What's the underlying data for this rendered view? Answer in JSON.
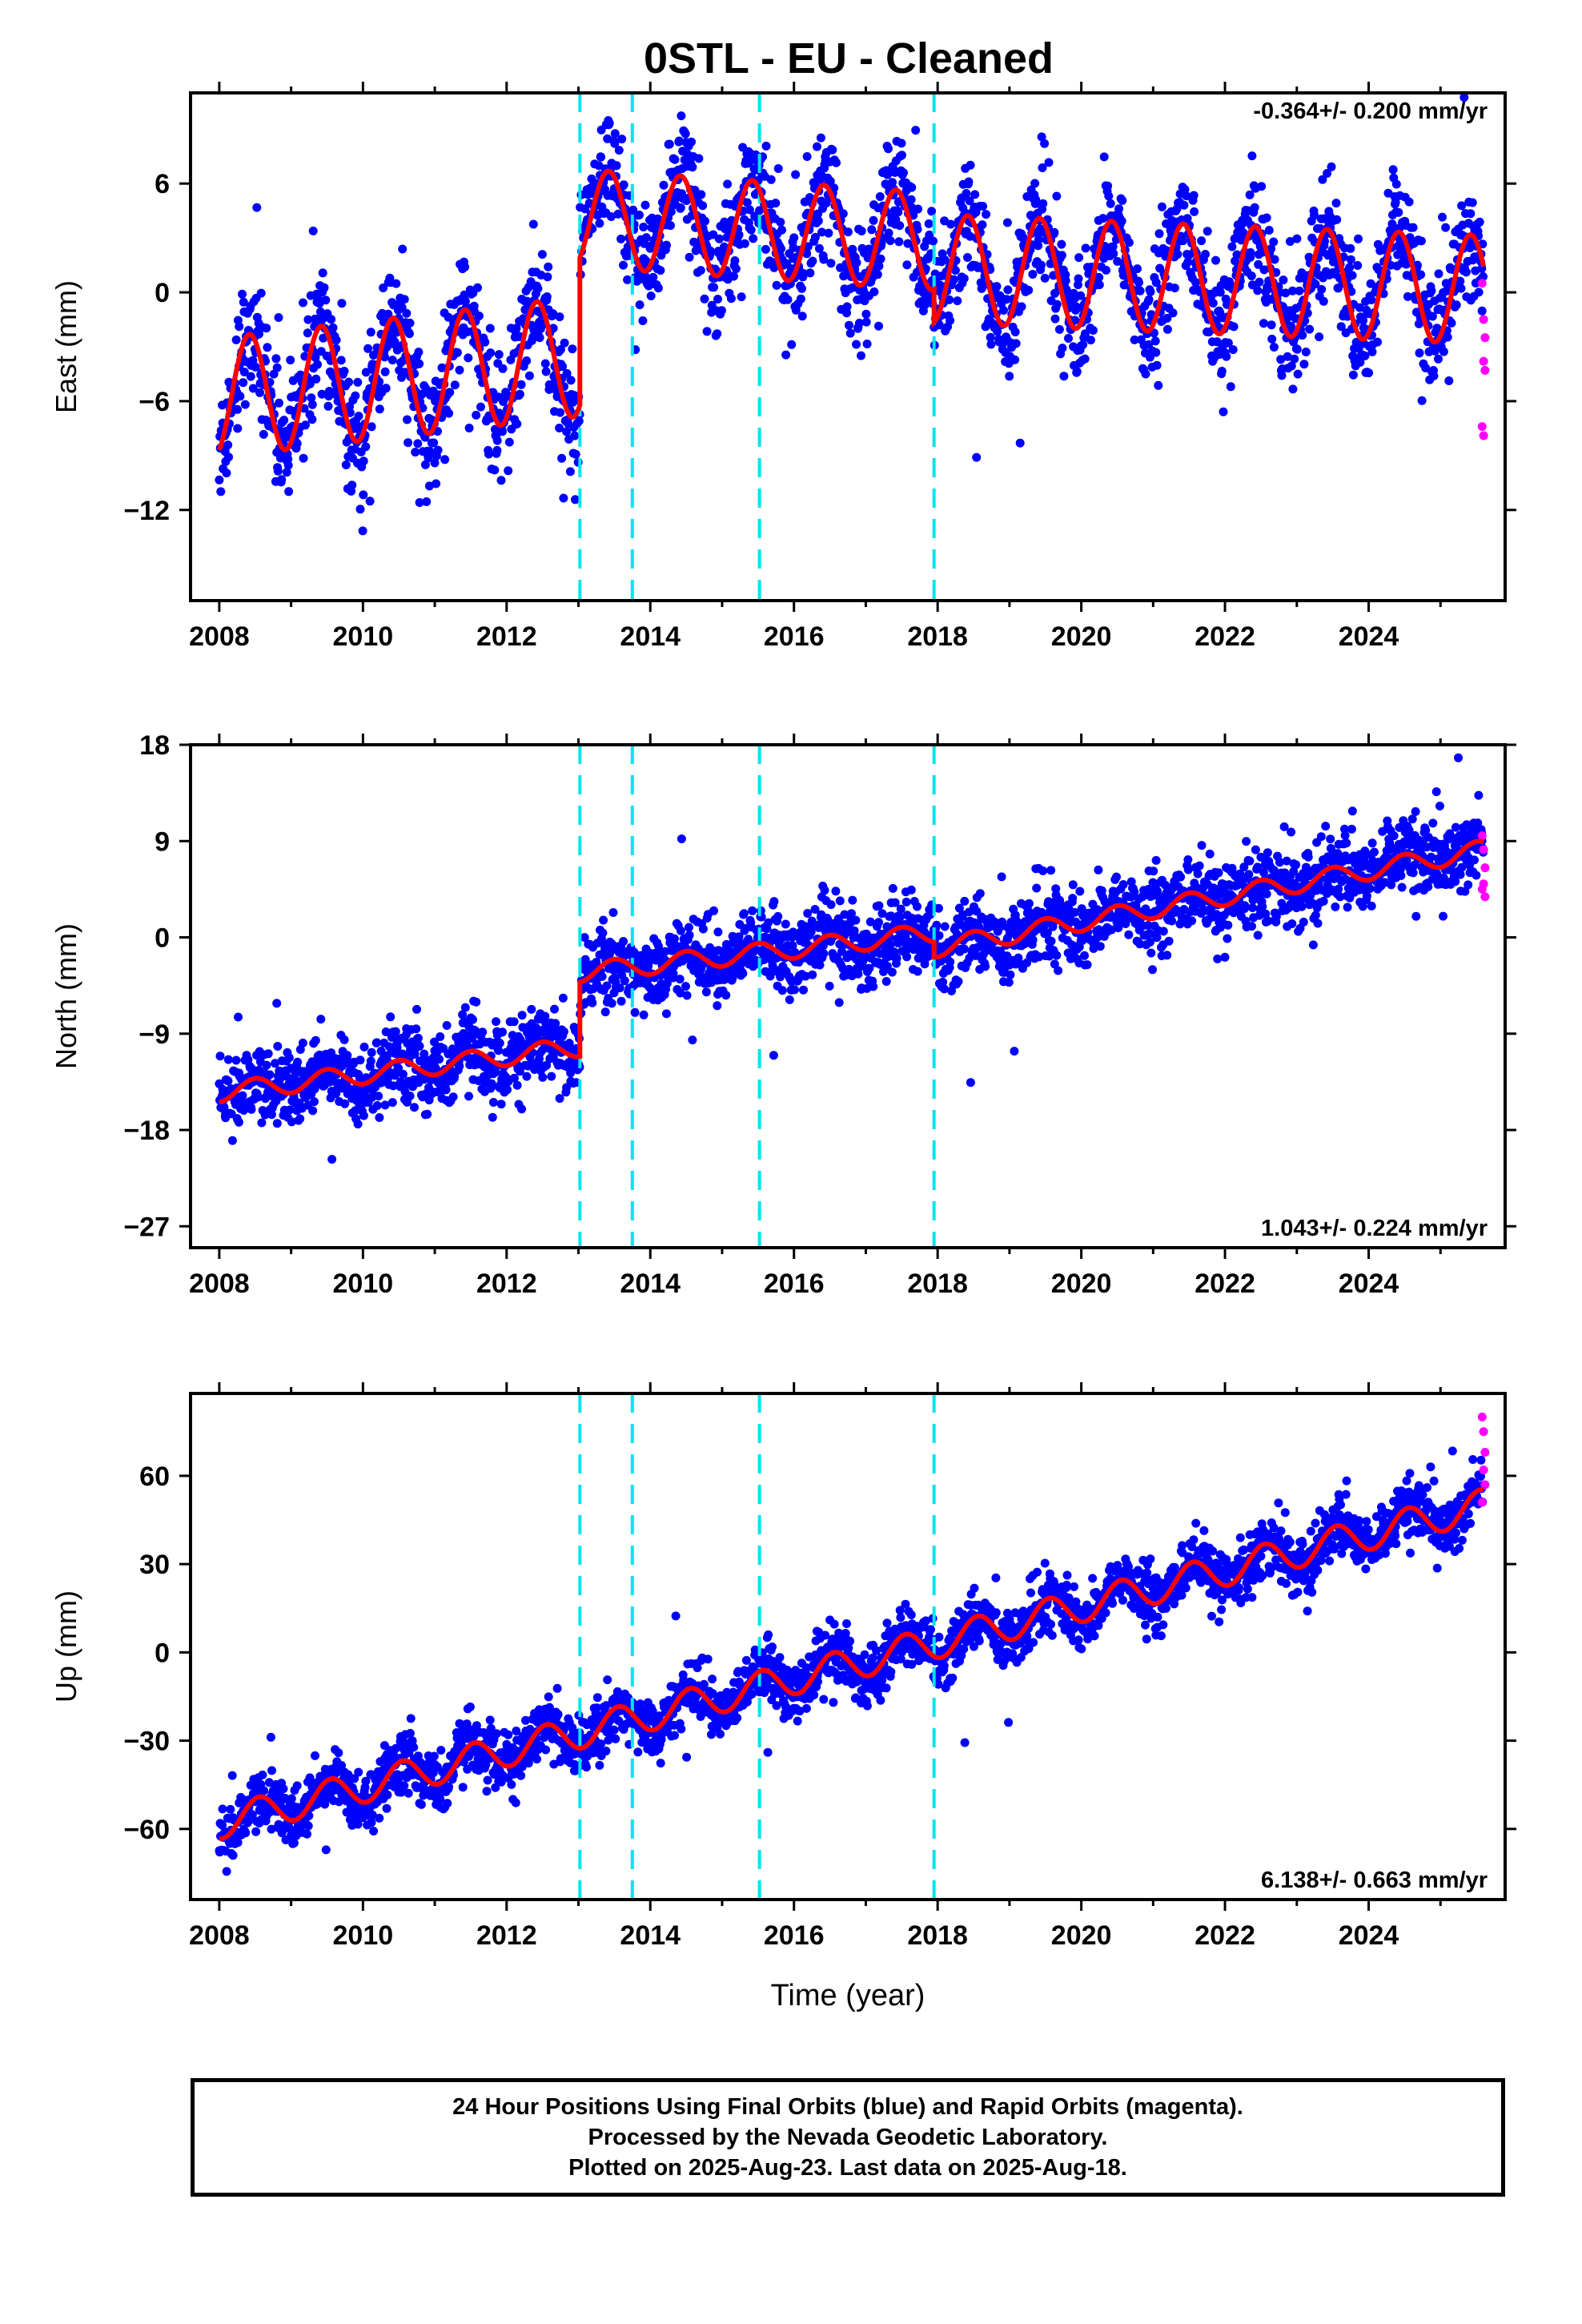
{
  "title": "0STL  - EU - Cleaned",
  "chart_data": [
    {
      "type": "scatter",
      "ylabel": "East (mm)",
      "xlabel": "",
      "rate_label": "-0.364+/- 0.200 mm/yr",
      "xlim": [
        2007.6,
        2025.9
      ],
      "ylim": [
        -17,
        11
      ],
      "xticks": [
        "2008",
        "2010",
        "2012",
        "2014",
        "2016",
        "2018",
        "2020",
        "2022",
        "2024"
      ],
      "yticks": [
        6,
        0,
        -6,
        -12
      ],
      "ytick_labels": [
        "6",
        "0",
        "−6",
        "−12"
      ],
      "offsets": [
        2013.02,
        2013.75,
        2015.52,
        2017.95
      ],
      "model_segments": [
        {
          "x0": 2008.0,
          "x1": 2013.02,
          "offset": -5.8,
          "slope": 0.45,
          "amp": 3.3,
          "phase": 2008.42
        },
        {
          "x0": 2013.02,
          "x1": 2017.95,
          "offset": 4.1,
          "slope": -0.26,
          "amp": 2.7,
          "phase": 2008.42
        },
        {
          "x0": 2017.95,
          "x1": 2025.6,
          "offset": 1.3,
          "slope": -0.15,
          "amp": 3.0,
          "phase": 2008.42
        }
      ],
      "scatter_spread": 1.6,
      "rapid_points": [
        {
          "x": 2025.58,
          "y": 0.5
        },
        {
          "x": 2025.6,
          "y": -1.5
        },
        {
          "x": 2025.62,
          "y": -2.5
        },
        {
          "x": 2025.6,
          "y": -3.8
        },
        {
          "x": 2025.62,
          "y": -4.3
        },
        {
          "x": 2025.58,
          "y": -7.4
        },
        {
          "x": 2025.6,
          "y": -7.9
        }
      ]
    },
    {
      "type": "scatter",
      "ylabel": "North (mm)",
      "xlabel": "",
      "rate_label": "1.043+/- 0.224 mm/yr",
      "xlim": [
        2007.6,
        2025.9
      ],
      "ylim": [
        -29,
        18
      ],
      "xticks": [
        "2008",
        "2010",
        "2012",
        "2014",
        "2016",
        "2018",
        "2020",
        "2022",
        "2024"
      ],
      "yticks": [
        18,
        9,
        0,
        -9,
        -18,
        -27
      ],
      "ytick_labels": [
        "18",
        "9",
        "0",
        "−9",
        "−18",
        "−27"
      ],
      "offsets": [
        2013.02,
        2013.75,
        2015.52,
        2017.95
      ],
      "model_segments": [
        {
          "x0": 2008.0,
          "x1": 2013.02,
          "offset": -14.5,
          "slope": 0.85,
          "amp": 0.9,
          "phase": 2008.5
        },
        {
          "x0": 2013.02,
          "x1": 2017.95,
          "offset": -3.3,
          "slope": 0.75,
          "amp": 0.9,
          "phase": 2008.5
        },
        {
          "x0": 2017.95,
          "x1": 2025.6,
          "offset": -1.0,
          "slope": 1.2,
          "amp": 0.9,
          "phase": 2008.5
        }
      ],
      "scatter_spread": 1.8,
      "rapid_points": [
        {
          "x": 2025.58,
          "y": 9.5
        },
        {
          "x": 2025.6,
          "y": 8.2
        },
        {
          "x": 2025.62,
          "y": 6.5
        },
        {
          "x": 2025.6,
          "y": 5.0
        },
        {
          "x": 2025.62,
          "y": 3.8
        },
        {
          "x": 2025.58,
          "y": 4.5
        }
      ]
    },
    {
      "type": "scatter",
      "ylabel": "Up (mm)",
      "xlabel": "Time (year)",
      "rate_label": "6.138+/- 0.663 mm/yr",
      "xlim": [
        2007.6,
        2025.9
      ],
      "ylim": [
        -84,
        88
      ],
      "xticks": [
        "2008",
        "2010",
        "2012",
        "2014",
        "2016",
        "2018",
        "2020",
        "2022",
        "2024"
      ],
      "yticks": [
        60,
        30,
        0,
        -30,
        -60
      ],
      "ytick_labels": [
        "60",
        "30",
        "0",
        "−30",
        "−60"
      ],
      "offsets": [
        2013.02,
        2013.75,
        2015.52,
        2017.95
      ],
      "model_segments": [
        {
          "x0": 2008.0,
          "x1": 2025.6,
          "offset": -58,
          "slope": 6.14,
          "amp": 5.5,
          "phase": 2008.55
        }
      ],
      "scatter_spread": 5.0,
      "rapid_points": [
        {
          "x": 2025.58,
          "y": 80
        },
        {
          "x": 2025.6,
          "y": 75
        },
        {
          "x": 2025.62,
          "y": 68
        },
        {
          "x": 2025.6,
          "y": 62
        },
        {
          "x": 2025.62,
          "y": 57
        },
        {
          "x": 2025.58,
          "y": 51
        }
      ]
    }
  ],
  "colors": {
    "final_orbits": "#0000ff",
    "rapid_orbits": "#ff00ff",
    "model": "#ff0000",
    "offset_lines": "#00e5ee"
  },
  "caption": {
    "line1": "24 Hour Positions Using Final Orbits (blue) and Rapid Orbits (magenta).",
    "line2": "Processed by the Nevada Geodetic Laboratory.",
    "line3": "Plotted on 2025-Aug-23. Last data on 2025-Aug-18."
  }
}
